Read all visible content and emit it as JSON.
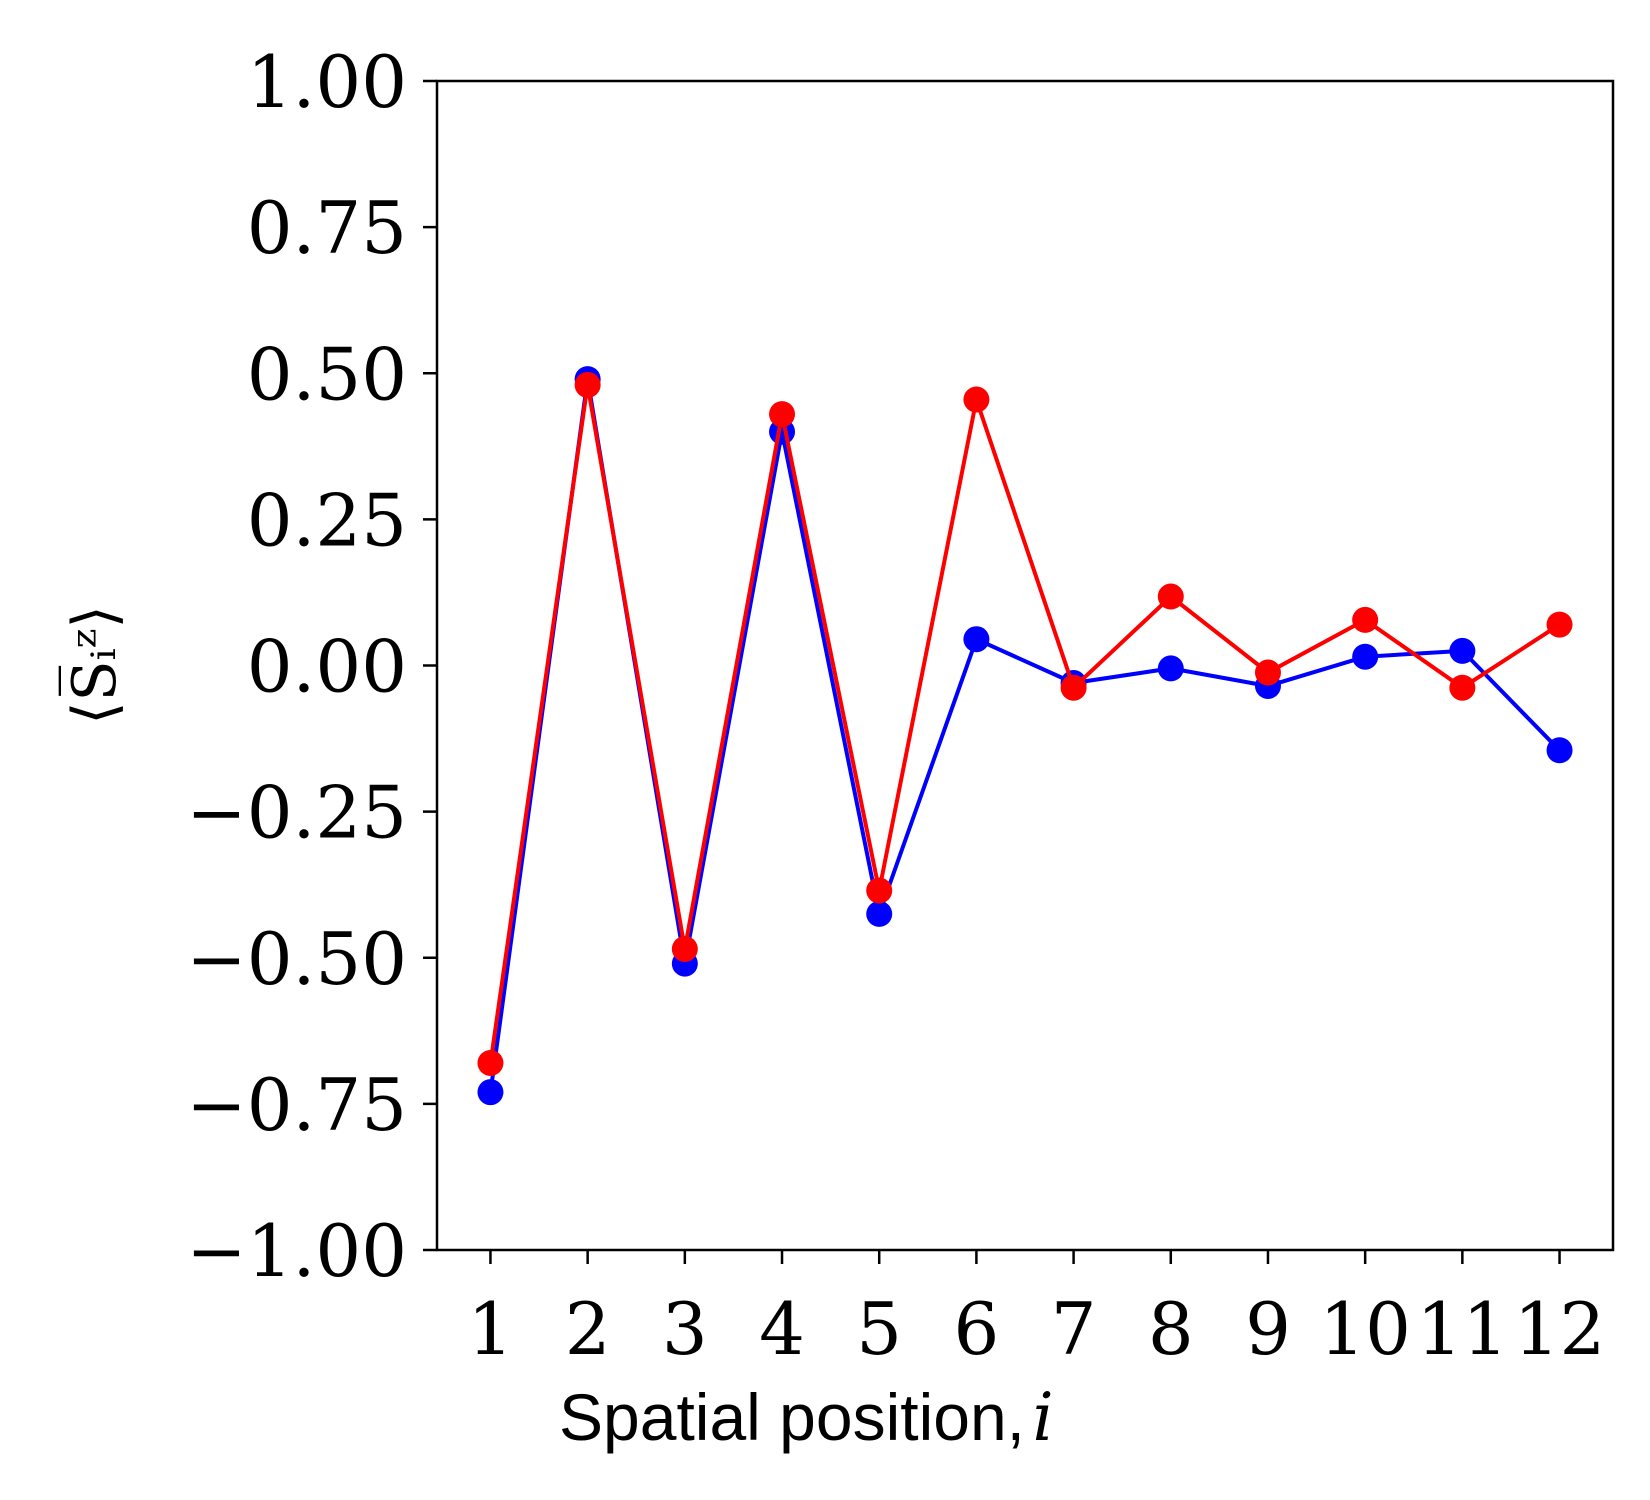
{
  "chart_data": {
    "type": "line",
    "title": "",
    "xlabel": "Spatial position,",
    "xlabel_variable": "i",
    "ylabel": "⟨S̅ᵢᶻ⟩",
    "x": [
      1,
      2,
      3,
      4,
      5,
      6,
      7,
      8,
      9,
      10,
      11,
      12
    ],
    "xlim": [
      0.45,
      12.55
    ],
    "ylim": [
      -1.0,
      1.0
    ],
    "yticks": [
      1.0,
      0.75,
      0.5,
      0.25,
      0.0,
      -0.25,
      -0.5,
      -0.75,
      -1.0
    ],
    "ytick_labels": [
      "1.00",
      "0.75",
      "0.50",
      "0.25",
      "0.00",
      "−0.25",
      "−0.50",
      "−0.75",
      "−1.00"
    ],
    "xtick_labels": [
      "1",
      "2",
      "3",
      "4",
      "5",
      "6",
      "7",
      "8",
      "9",
      "10",
      "11",
      "12"
    ],
    "grid": false,
    "legend": "none",
    "series": [
      {
        "color": "#0000ff",
        "values": [
          -0.73,
          0.49,
          -0.51,
          0.4,
          -0.425,
          0.045,
          -0.03,
          -0.005,
          -0.035,
          0.015,
          0.025,
          -0.145
        ]
      },
      {
        "color": "#ff0000",
        "values": [
          -0.68,
          0.48,
          -0.485,
          0.43,
          -0.385,
          0.455,
          -0.038,
          0.118,
          -0.012,
          0.078,
          -0.038,
          0.07
        ]
      }
    ]
  }
}
